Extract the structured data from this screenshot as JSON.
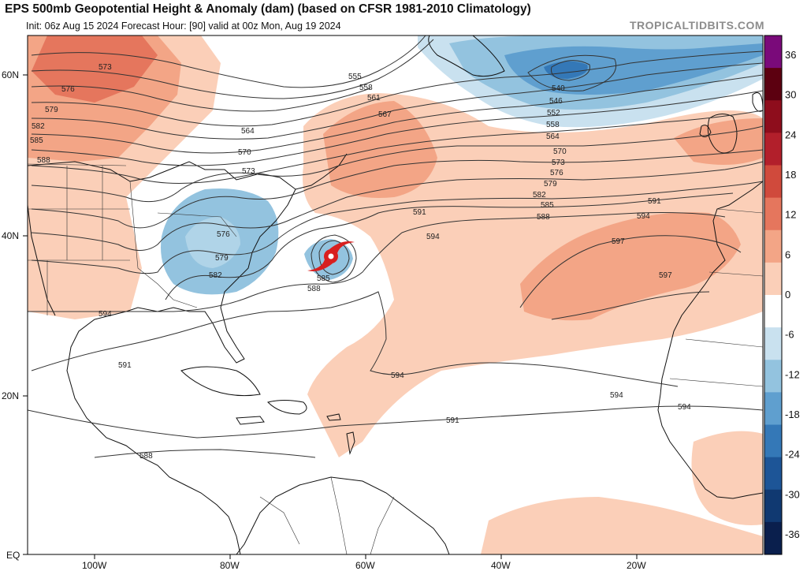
{
  "header": {
    "title": "EPS 500mb Geopotential Height & Anomaly (dam) (based on CFSR 1981-2010 Climatology)",
    "subtitle": "Init: 06z Aug 15 2024   Forecast Hour: [90]   valid at 00z Mon, Aug 19 2024",
    "brand": "TROPICALTIDBITS.COM"
  },
  "axes": {
    "latitudes": [
      "60N",
      "40N",
      "20N",
      "EQ"
    ],
    "longitudes": [
      "100W",
      "80W",
      "60W",
      "40W",
      "20W"
    ]
  },
  "colorbar": {
    "ticks": [
      "36",
      "30",
      "24",
      "18",
      "12",
      "6",
      "0",
      "-6",
      "-12",
      "-18",
      "-24",
      "-30",
      "-36"
    ],
    "colors": [
      "#7a0a7a",
      "#5c0010",
      "#8e0d1c",
      "#b21f2b",
      "#d04a3c",
      "#e5765d",
      "#f3a586",
      "#fbcfb8",
      "#ffffff",
      "#c9e1ef",
      "#93c3df",
      "#5f9fcf",
      "#3478b7",
      "#1d5597",
      "#103971",
      "#0a1f4d"
    ]
  },
  "contour_labels": [
    "573",
    "576",
    "579",
    "582",
    "585",
    "588",
    "555",
    "558",
    "561",
    "567",
    "564",
    "570",
    "573",
    "576",
    "540",
    "546",
    "552",
    "558",
    "564",
    "570",
    "573",
    "576",
    "579",
    "582",
    "585",
    "588",
    "591",
    "594",
    "597",
    "591",
    "594",
    "597",
    "594",
    "576",
    "579",
    "582",
    "585",
    "588",
    "594",
    "591",
    "588",
    "594",
    "591",
    "594",
    "591",
    "573",
    "564",
    "570"
  ],
  "features": {
    "hurricane_icon": "hurricane-symbol"
  }
}
